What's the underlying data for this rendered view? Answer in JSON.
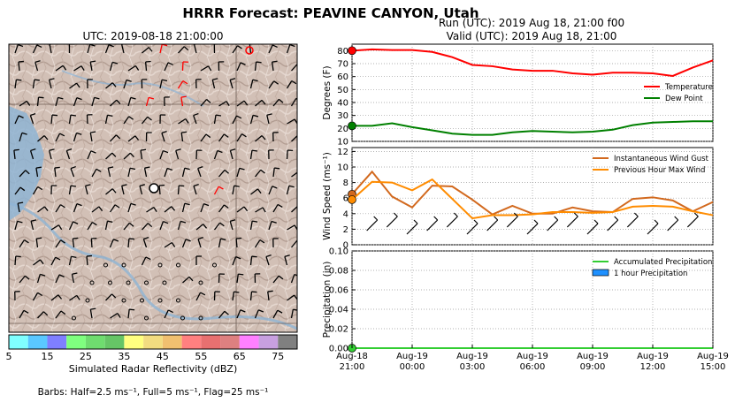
{
  "figure": {
    "title": "HRRR Forecast: PEAVINE CANYON, Utah",
    "map_title": "UTC: 2019-08-18 21:00:00",
    "run_label": "Run (UTC): 2019 Aug 18, 21:00 f00",
    "valid_label": "Valid (UTC): 2019 Aug 18, 21:00",
    "barbs_note": "Barbs: Half=2.5 ms⁻¹, Full=5 ms⁻¹, Flag=25 ms⁻¹"
  },
  "colorbar": {
    "label": "Simulated Radar Reflectivity (dBZ)",
    "ticks": [
      "5",
      "15",
      "25",
      "35",
      "45",
      "55",
      "65",
      "75"
    ],
    "colors": [
      "#80ffff",
      "#5ac8ff",
      "#7f7fff",
      "#7fff7f",
      "#6fdc6f",
      "#66c566",
      "#ffff80",
      "#f2dc80",
      "#f0c070",
      "#ff8080",
      "#e87070",
      "#de8080",
      "#ff80ff",
      "#c8a0e0",
      "#808080"
    ]
  },
  "colors": {
    "temperature": "#ff0000",
    "dew_point": "#008000",
    "gust": "#d2691e",
    "max_wind": "#ff8c00",
    "accum_precip": "#32cd32",
    "hourly_precip": "#1e90ff"
  },
  "chart_data": [
    {
      "type": "line",
      "panel": "temperature",
      "ylabel": "Degrees (F)",
      "ylim": [
        10,
        85
      ],
      "yticks": [
        "10",
        "20",
        "30",
        "40",
        "50",
        "60",
        "70",
        "80"
      ],
      "x_hours_after_start": [
        0,
        1,
        2,
        3,
        4,
        5,
        6,
        7,
        8,
        9,
        10,
        11,
        12,
        13,
        14,
        15,
        16,
        17,
        18
      ],
      "series": [
        {
          "name": "Temperature",
          "values": [
            80,
            81,
            80.5,
            80.5,
            79,
            75,
            69,
            68,
            65.5,
            64.5,
            64.5,
            62.5,
            61.5,
            63,
            63,
            62.5,
            60.5,
            67,
            72.5
          ]
        },
        {
          "name": "Dew Point",
          "values": [
            22,
            22,
            24,
            21,
            18.5,
            16,
            15,
            15,
            17,
            18,
            17.5,
            17,
            17.5,
            19,
            22.5,
            24.5,
            25,
            25.5,
            25.5
          ]
        }
      ],
      "legend": "right",
      "grid": true
    },
    {
      "type": "line",
      "panel": "wind",
      "ylabel": "Wind Speed  (ms⁻¹)",
      "ylim": [
        0,
        12.5
      ],
      "yticks": [
        "0",
        "2",
        "4",
        "6",
        "8",
        "10",
        "12"
      ],
      "x_hours_after_start": [
        0,
        1,
        2,
        3,
        4,
        5,
        6,
        7,
        8,
        9,
        10,
        11,
        12,
        13,
        14,
        15,
        16,
        17,
        18
      ],
      "series": [
        {
          "name": "Instantaneous Wind Gust",
          "values": [
            6.5,
            9.4,
            6.2,
            4.8,
            7.6,
            7.5,
            5.8,
            3.9,
            5,
            4,
            4,
            4.8,
            4.3,
            4.2,
            5.9,
            6.1,
            5.7,
            4.3,
            5.5
          ]
        },
        {
          "name": "Previous Hour Max Wind",
          "values": [
            5.8,
            8.1,
            8,
            7,
            8.4,
            5.9,
            3.4,
            3.8,
            3.8,
            3.9,
            4.2,
            4.2,
            4.1,
            4.2,
            4.9,
            5,
            4.9,
            4.3,
            3.8
          ]
        }
      ],
      "legend": "top-right",
      "grid": true
    },
    {
      "type": "line",
      "panel": "precipitation",
      "ylabel": "Precipitation (in)",
      "xlabel_ticks": [
        {
          "line1": "Aug-18",
          "line2": "21:00"
        },
        {
          "line1": "Aug-19",
          "line2": "00:00"
        },
        {
          "line1": "Aug-19",
          "line2": "03:00"
        },
        {
          "line1": "Aug-19",
          "line2": "06:00"
        },
        {
          "line1": "Aug-19",
          "line2": "09:00"
        },
        {
          "line1": "Aug-19",
          "line2": "12:00"
        },
        {
          "line1": "Aug-19",
          "line2": "15:00"
        }
      ],
      "ylim": [
        0,
        0.1
      ],
      "yticks": [
        "0.00",
        "0.02",
        "0.04",
        "0.06",
        "0.08",
        "0.10"
      ],
      "x_hours_after_start": [
        0,
        1,
        2,
        3,
        4,
        5,
        6,
        7,
        8,
        9,
        10,
        11,
        12,
        13,
        14,
        15,
        16,
        17,
        18
      ],
      "series": [
        {
          "name": "Accumulated Precipitation",
          "values": [
            0,
            0,
            0,
            0,
            0,
            0,
            0,
            0,
            0,
            0,
            0,
            0,
            0,
            0,
            0,
            0,
            0,
            0,
            0
          ]
        },
        {
          "name": "1 hour Precipitation",
          "values": [
            0,
            0,
            0,
            0,
            0,
            0,
            0,
            0,
            0,
            0,
            0,
            0,
            0,
            0,
            0,
            0,
            0,
            0,
            0
          ]
        }
      ],
      "legend": "top-right",
      "grid": true
    }
  ]
}
